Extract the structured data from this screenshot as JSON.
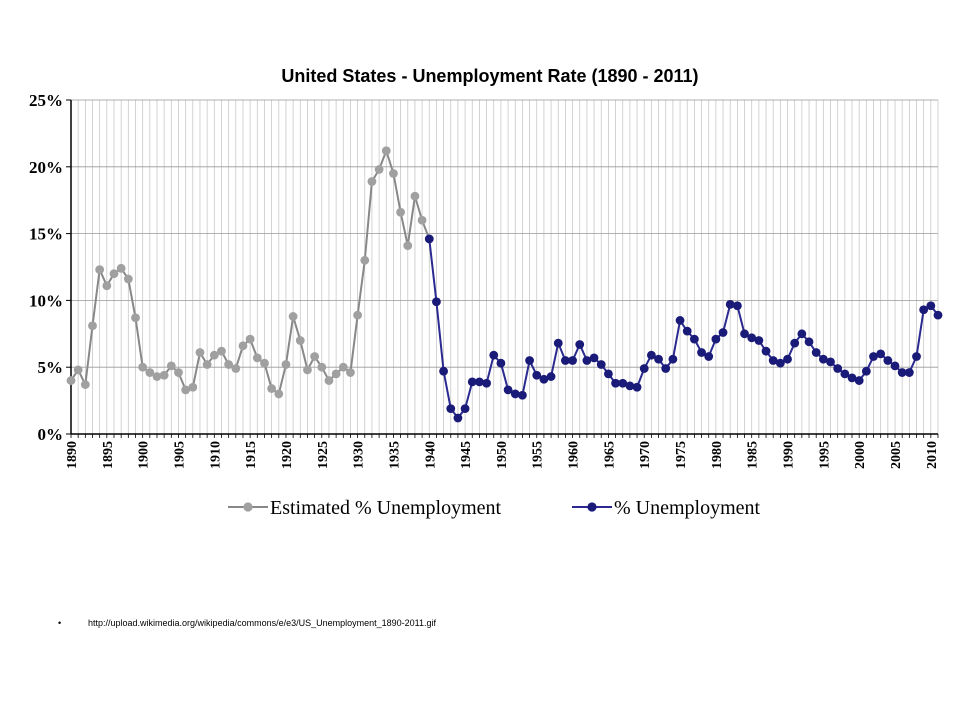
{
  "slide": {
    "footnote_bullet": "•",
    "footnote_text": "http://upload.wikimedia.org/wikipedia/commons/e/e3/US_Unemployment_1890-2011.gif"
  },
  "colors": {
    "estimated": "#a0a0a0",
    "estimated_line": "#888888",
    "actual": "#1a1a78",
    "actual_line": "#2a2a90",
    "grid": "#c8c8c8",
    "axis": "#000000"
  },
  "chart_data": {
    "type": "line",
    "title": "United States - Unemployment Rate (1890 - 2011)",
    "xlabel": "",
    "ylabel": "",
    "xlim": [
      1890,
      2011
    ],
    "ylim": [
      0,
      25
    ],
    "grid": true,
    "legend_position": "bottom",
    "y_ticks": [
      "0%",
      "5%",
      "10%",
      "15%",
      "20%",
      "25%"
    ],
    "x_ticks": [
      "1890",
      "1895",
      "1900",
      "1905",
      "1910",
      "1915",
      "1920",
      "1925",
      "1930",
      "1935",
      "1940",
      "1945",
      "1950",
      "1955",
      "1960",
      "1965",
      "1970",
      "1975",
      "1980",
      "1985",
      "1990",
      "1995",
      "2000",
      "2005",
      "2010"
    ],
    "series": [
      {
        "name": "Estimated % Unemployment",
        "x": [
          1890,
          1891,
          1892,
          1893,
          1894,
          1895,
          1896,
          1897,
          1898,
          1899,
          1900,
          1901,
          1902,
          1903,
          1904,
          1905,
          1906,
          1907,
          1908,
          1909,
          1910,
          1911,
          1912,
          1913,
          1914,
          1915,
          1916,
          1917,
          1918,
          1919,
          1920,
          1921,
          1922,
          1923,
          1924,
          1925,
          1926,
          1927,
          1928,
          1929,
          1930,
          1931,
          1932,
          1933,
          1934,
          1935,
          1936,
          1937,
          1938,
          1939,
          1940
        ],
        "values": [
          4.0,
          4.8,
          3.7,
          8.1,
          12.3,
          11.1,
          12.0,
          12.4,
          11.6,
          8.7,
          5.0,
          4.6,
          4.3,
          4.4,
          5.1,
          4.6,
          3.3,
          3.5,
          6.1,
          5.2,
          5.9,
          6.2,
          5.2,
          4.9,
          6.6,
          7.1,
          5.7,
          5.3,
          3.4,
          3.0,
          5.2,
          8.8,
          7.0,
          4.8,
          5.8,
          5.0,
          4.0,
          4.5,
          5.0,
          4.6,
          8.9,
          13.0,
          18.9,
          19.8,
          21.2,
          19.5,
          16.6,
          14.1,
          17.8,
          16.0,
          14.6
        ]
      },
      {
        "name": "% Unemployment",
        "x": [
          1940,
          1941,
          1942,
          1943,
          1944,
          1945,
          1946,
          1947,
          1948,
          1949,
          1950,
          1951,
          1952,
          1953,
          1954,
          1955,
          1956,
          1957,
          1958,
          1959,
          1960,
          1961,
          1962,
          1963,
          1964,
          1965,
          1966,
          1967,
          1968,
          1969,
          1970,
          1971,
          1972,
          1973,
          1974,
          1975,
          1976,
          1977,
          1978,
          1979,
          1980,
          1981,
          1982,
          1983,
          1984,
          1985,
          1986,
          1987,
          1988,
          1989,
          1990,
          1991,
          1992,
          1993,
          1994,
          1995,
          1996,
          1997,
          1998,
          1999,
          2000,
          2001,
          2002,
          2003,
          2004,
          2005,
          2006,
          2007,
          2008,
          2009,
          2010,
          2011
        ],
        "values": [
          14.6,
          9.9,
          4.7,
          1.9,
          1.2,
          1.9,
          3.9,
          3.9,
          3.8,
          5.9,
          5.3,
          3.3,
          3.0,
          2.9,
          5.5,
          4.4,
          4.1,
          4.3,
          6.8,
          5.5,
          5.5,
          6.7,
          5.5,
          5.7,
          5.2,
          4.5,
          3.8,
          3.8,
          3.6,
          3.5,
          4.9,
          5.9,
          5.6,
          4.9,
          5.6,
          8.5,
          7.7,
          7.1,
          6.1,
          5.8,
          7.1,
          7.6,
          9.7,
          9.6,
          7.5,
          7.2,
          7.0,
          6.2,
          5.5,
          5.3,
          5.6,
          6.8,
          7.5,
          6.9,
          6.1,
          5.6,
          5.4,
          4.9,
          4.5,
          4.2,
          4.0,
          4.7,
          5.8,
          6.0,
          5.5,
          5.1,
          4.6,
          4.6,
          5.8,
          9.3,
          9.6,
          8.9
        ]
      }
    ]
  }
}
